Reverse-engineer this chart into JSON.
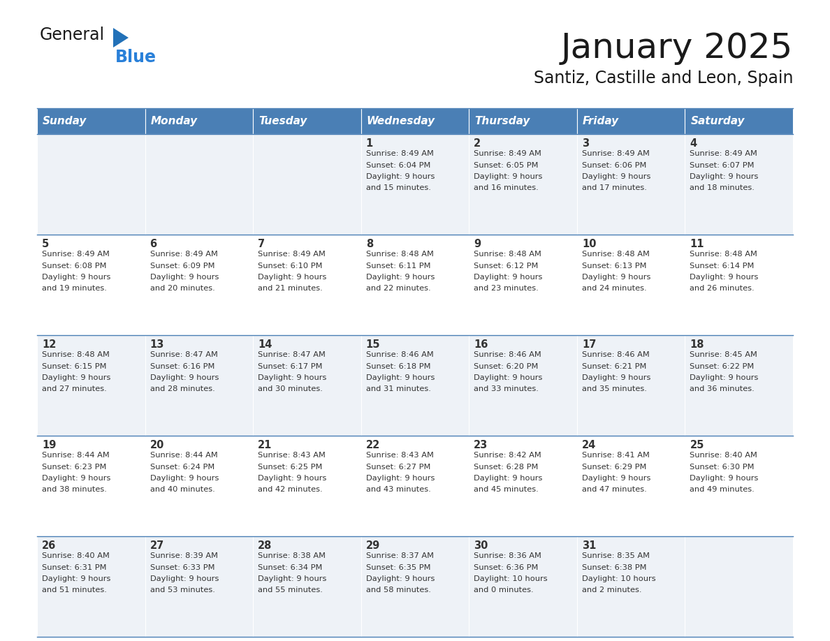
{
  "title": "January 2025",
  "subtitle": "Santiz, Castille and Leon, Spain",
  "header_bg_color": "#4a7fb5",
  "header_text_color": "#ffffff",
  "header_days": [
    "Sunday",
    "Monday",
    "Tuesday",
    "Wednesday",
    "Thursday",
    "Friday",
    "Saturday"
  ],
  "row_bg_even": "#eef2f7",
  "row_bg_odd": "#ffffff",
  "cell_border_color": "#4a7fb5",
  "title_color": "#1a1a1a",
  "subtitle_color": "#1a1a1a",
  "day_num_color": "#333333",
  "text_color": "#333333",
  "logo_general_color": "#1a1a1a",
  "logo_blue_color": "#2980d9",
  "logo_triangle_color": "#2271b8",
  "calendar_data": [
    [
      {
        "day": "",
        "sunrise": "",
        "sunset": "",
        "daylight": ""
      },
      {
        "day": "",
        "sunrise": "",
        "sunset": "",
        "daylight": ""
      },
      {
        "day": "",
        "sunrise": "",
        "sunset": "",
        "daylight": ""
      },
      {
        "day": "1",
        "sunrise": "8:49 AM",
        "sunset": "6:04 PM",
        "daylight": "9 hours\nand 15 minutes."
      },
      {
        "day": "2",
        "sunrise": "8:49 AM",
        "sunset": "6:05 PM",
        "daylight": "9 hours\nand 16 minutes."
      },
      {
        "day": "3",
        "sunrise": "8:49 AM",
        "sunset": "6:06 PM",
        "daylight": "9 hours\nand 17 minutes."
      },
      {
        "day": "4",
        "sunrise": "8:49 AM",
        "sunset": "6:07 PM",
        "daylight": "9 hours\nand 18 minutes."
      }
    ],
    [
      {
        "day": "5",
        "sunrise": "8:49 AM",
        "sunset": "6:08 PM",
        "daylight": "9 hours\nand 19 minutes."
      },
      {
        "day": "6",
        "sunrise": "8:49 AM",
        "sunset": "6:09 PM",
        "daylight": "9 hours\nand 20 minutes."
      },
      {
        "day": "7",
        "sunrise": "8:49 AM",
        "sunset": "6:10 PM",
        "daylight": "9 hours\nand 21 minutes."
      },
      {
        "day": "8",
        "sunrise": "8:48 AM",
        "sunset": "6:11 PM",
        "daylight": "9 hours\nand 22 minutes."
      },
      {
        "day": "9",
        "sunrise": "8:48 AM",
        "sunset": "6:12 PM",
        "daylight": "9 hours\nand 23 minutes."
      },
      {
        "day": "10",
        "sunrise": "8:48 AM",
        "sunset": "6:13 PM",
        "daylight": "9 hours\nand 24 minutes."
      },
      {
        "day": "11",
        "sunrise": "8:48 AM",
        "sunset": "6:14 PM",
        "daylight": "9 hours\nand 26 minutes."
      }
    ],
    [
      {
        "day": "12",
        "sunrise": "8:48 AM",
        "sunset": "6:15 PM",
        "daylight": "9 hours\nand 27 minutes."
      },
      {
        "day": "13",
        "sunrise": "8:47 AM",
        "sunset": "6:16 PM",
        "daylight": "9 hours\nand 28 minutes."
      },
      {
        "day": "14",
        "sunrise": "8:47 AM",
        "sunset": "6:17 PM",
        "daylight": "9 hours\nand 30 minutes."
      },
      {
        "day": "15",
        "sunrise": "8:46 AM",
        "sunset": "6:18 PM",
        "daylight": "9 hours\nand 31 minutes."
      },
      {
        "day": "16",
        "sunrise": "8:46 AM",
        "sunset": "6:20 PM",
        "daylight": "9 hours\nand 33 minutes."
      },
      {
        "day": "17",
        "sunrise": "8:46 AM",
        "sunset": "6:21 PM",
        "daylight": "9 hours\nand 35 minutes."
      },
      {
        "day": "18",
        "sunrise": "8:45 AM",
        "sunset": "6:22 PM",
        "daylight": "9 hours\nand 36 minutes."
      }
    ],
    [
      {
        "day": "19",
        "sunrise": "8:44 AM",
        "sunset": "6:23 PM",
        "daylight": "9 hours\nand 38 minutes."
      },
      {
        "day": "20",
        "sunrise": "8:44 AM",
        "sunset": "6:24 PM",
        "daylight": "9 hours\nand 40 minutes."
      },
      {
        "day": "21",
        "sunrise": "8:43 AM",
        "sunset": "6:25 PM",
        "daylight": "9 hours\nand 42 minutes."
      },
      {
        "day": "22",
        "sunrise": "8:43 AM",
        "sunset": "6:27 PM",
        "daylight": "9 hours\nand 43 minutes."
      },
      {
        "day": "23",
        "sunrise": "8:42 AM",
        "sunset": "6:28 PM",
        "daylight": "9 hours\nand 45 minutes."
      },
      {
        "day": "24",
        "sunrise": "8:41 AM",
        "sunset": "6:29 PM",
        "daylight": "9 hours\nand 47 minutes."
      },
      {
        "day": "25",
        "sunrise": "8:40 AM",
        "sunset": "6:30 PM",
        "daylight": "9 hours\nand 49 minutes."
      }
    ],
    [
      {
        "day": "26",
        "sunrise": "8:40 AM",
        "sunset": "6:31 PM",
        "daylight": "9 hours\nand 51 minutes."
      },
      {
        "day": "27",
        "sunrise": "8:39 AM",
        "sunset": "6:33 PM",
        "daylight": "9 hours\nand 53 minutes."
      },
      {
        "day": "28",
        "sunrise": "8:38 AM",
        "sunset": "6:34 PM",
        "daylight": "9 hours\nand 55 minutes."
      },
      {
        "day": "29",
        "sunrise": "8:37 AM",
        "sunset": "6:35 PM",
        "daylight": "9 hours\nand 58 minutes."
      },
      {
        "day": "30",
        "sunrise": "8:36 AM",
        "sunset": "6:36 PM",
        "daylight": "10 hours\nand 0 minutes."
      },
      {
        "day": "31",
        "sunrise": "8:35 AM",
        "sunset": "6:38 PM",
        "daylight": "10 hours\nand 2 minutes."
      },
      {
        "day": "",
        "sunrise": "",
        "sunset": "",
        "daylight": ""
      }
    ]
  ]
}
